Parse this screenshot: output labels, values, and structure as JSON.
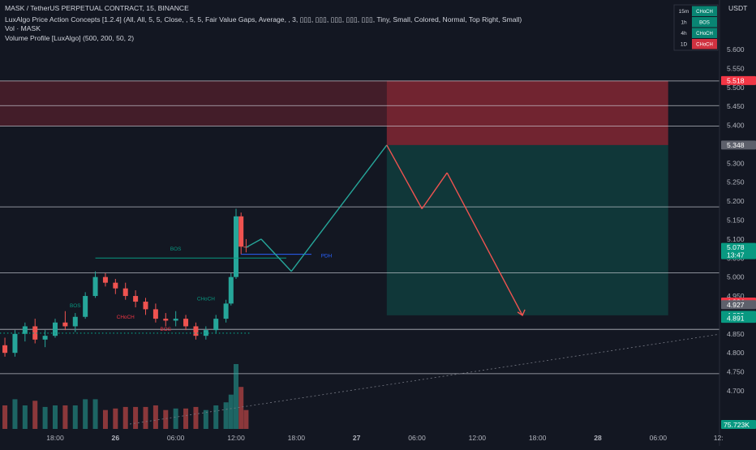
{
  "header": {
    "symbol_line": "MASK / TetherUS PERPETUAL CONTRACT, 15, BINANCE",
    "indicator_line": "LuxAlgo Price Action Concepts [1.2.4] (All, All, 5, 5, Close, , 5, 5, Fair Value Gaps, Average, , 3, ▯▯▯, ▯▯▯, ▯▯▯, ▯▯▯, ▯▯▯, Tiny, Small, Colored, Normal, Top Right, Small)",
    "vol_line": "Vol · MASK",
    "vp_line": "Volume Profile [LuxAlgo] (500, 200, 50, 2)"
  },
  "currency": "USDT",
  "mtf_table": [
    {
      "tf": "15m",
      "signal": "CHoCH",
      "color": "#089981"
    },
    {
      "tf": "1h",
      "signal": "BOS",
      "color": "#089981"
    },
    {
      "tf": "4h",
      "signal": "CHoCH",
      "color": "#089981"
    },
    {
      "tf": "1D",
      "signal": "CHoCH",
      "color": "#f23645"
    }
  ],
  "chart_data": {
    "type": "candlestick",
    "symbol": "MASK / TetherUS PERPETUAL CONTRACT",
    "interval": "15",
    "exchange": "BINANCE",
    "y_range": [
      4.655,
      5.66
    ],
    "y_ticks": [
      "5.600",
      "5.550",
      "5.500",
      "5.450",
      "5.400",
      "5.350",
      "5.300",
      "5.250",
      "5.200",
      "5.150",
      "5.100",
      "5.050",
      "5.000",
      "4.950",
      "4.900",
      "4.850",
      "4.800",
      "4.750",
      "4.700"
    ],
    "x_ticks": [
      {
        "t": "2025-06-25T18:00",
        "label": "18:00",
        "bold": false
      },
      {
        "t": "2025-06-26T00:00",
        "label": "26",
        "bold": true
      },
      {
        "t": "2025-06-26T06:00",
        "label": "06:00",
        "bold": false
      },
      {
        "t": "2025-06-26T12:00",
        "label": "12:00",
        "bold": false
      },
      {
        "t": "2025-06-26T18:00",
        "label": "18:00",
        "bold": false
      },
      {
        "t": "2025-06-27T00:00",
        "label": "27",
        "bold": true
      },
      {
        "t": "2025-06-27T06:00",
        "label": "06:00",
        "bold": false
      },
      {
        "t": "2025-06-27T12:00",
        "label": "12:00",
        "bold": false
      },
      {
        "t": "2025-06-27T18:00",
        "label": "18:00",
        "bold": false
      },
      {
        "t": "2025-06-28T00:00",
        "label": "28",
        "bold": true
      },
      {
        "t": "2025-06-28T06:00",
        "label": "06:00",
        "bold": false
      },
      {
        "t": "2025-06-28T12:00",
        "label": "12:",
        "bold": false
      }
    ],
    "price_series_ohlc": [
      [
        "2025-06-25T12:00",
        4.79,
        4.835,
        4.77,
        4.82
      ],
      [
        "2025-06-25T13:00",
        4.82,
        4.84,
        4.79,
        4.8
      ],
      [
        "2025-06-25T14:00",
        4.8,
        4.86,
        4.79,
        4.85
      ],
      [
        "2025-06-25T15:00",
        4.85,
        4.88,
        4.83,
        4.87
      ],
      [
        "2025-06-25T16:00",
        4.87,
        4.89,
        4.825,
        4.835
      ],
      [
        "2025-06-25T17:00",
        4.835,
        4.86,
        4.815,
        4.845
      ],
      [
        "2025-06-25T18:00",
        4.845,
        4.89,
        4.84,
        4.88
      ],
      [
        "2025-06-25T19:00",
        4.88,
        4.91,
        4.86,
        4.87
      ],
      [
        "2025-06-25T20:00",
        4.87,
        4.905,
        4.855,
        4.895
      ],
      [
        "2025-06-25T21:00",
        4.895,
        4.96,
        4.89,
        4.95
      ],
      [
        "2025-06-25T22:00",
        4.95,
        5.015,
        4.945,
        5.0
      ],
      [
        "2025-06-25T23:00",
        5.0,
        5.01,
        4.975,
        4.985
      ],
      [
        "2025-06-26T00:00",
        4.985,
        4.995,
        4.955,
        4.97
      ],
      [
        "2025-06-26T01:00",
        4.97,
        4.985,
        4.94,
        4.95
      ],
      [
        "2025-06-26T02:00",
        4.95,
        4.965,
        4.92,
        4.935
      ],
      [
        "2025-06-26T03:00",
        4.935,
        4.945,
        4.9,
        4.915
      ],
      [
        "2025-06-26T04:00",
        4.915,
        4.93,
        4.88,
        4.89
      ],
      [
        "2025-06-26T05:00",
        4.89,
        4.905,
        4.87,
        4.885
      ],
      [
        "2025-06-26T06:00",
        4.885,
        4.91,
        4.87,
        4.89
      ],
      [
        "2025-06-26T07:00",
        4.89,
        4.9,
        4.86,
        4.87
      ],
      [
        "2025-06-26T08:00",
        4.87,
        4.88,
        4.835,
        4.845
      ],
      [
        "2025-06-26T09:00",
        4.845,
        4.87,
        4.835,
        4.86
      ],
      [
        "2025-06-26T10:00",
        4.86,
        4.9,
        4.85,
        4.89
      ],
      [
        "2025-06-26T11:00",
        4.89,
        4.94,
        4.88,
        4.93
      ],
      [
        "2025-06-26T11:30",
        4.93,
        5.01,
        4.925,
        5.0
      ],
      [
        "2025-06-26T12:00",
        5.0,
        5.18,
        4.995,
        5.16
      ],
      [
        "2025-06-26T12:30",
        5.16,
        5.17,
        5.06,
        5.08
      ],
      [
        "2025-06-26T13:00",
        5.08,
        5.1,
        5.065,
        5.078
      ]
    ],
    "volume_label": "75.723K",
    "horizontal_levels": [
      5.517,
      5.452,
      5.398,
      5.185,
      5.011,
      4.862,
      4.745
    ],
    "labels": [
      {
        "text": "BOS",
        "t": "2025-06-26T06:00",
        "price": 5.07,
        "color": "#089981"
      },
      {
        "text": "PDH",
        "t": "2025-06-26T21:00",
        "price": 5.052,
        "color": "#2962ff"
      },
      {
        "text": "CHoCH",
        "t": "2025-06-26T09:00",
        "price": 4.938,
        "color": "#089981"
      },
      {
        "text": "CHoCH",
        "t": "2025-06-26T01:00",
        "price": 4.89,
        "color": "#f23645"
      },
      {
        "text": "BOS",
        "t": "2025-06-25T20:00",
        "price": 4.92,
        "color": "#089981"
      },
      {
        "text": "BOS",
        "t": "2025-06-26T05:00",
        "price": 4.858,
        "color": "#f23645"
      }
    ],
    "projection_path": [
      {
        "t": "2025-06-26T13:00",
        "price": 5.078
      },
      {
        "t": "2025-06-26T14:30",
        "price": 5.1
      },
      {
        "t": "2025-06-26T17:30",
        "price": 5.015
      },
      {
        "t": "2025-06-27T03:00",
        "price": 5.348
      },
      {
        "t": "2025-06-27T06:30",
        "price": 5.18
      },
      {
        "t": "2025-06-27T09:00",
        "price": 5.275
      },
      {
        "t": "2025-06-27T16:30",
        "price": 4.899
      }
    ],
    "position": {
      "start": "2025-06-27T03:00",
      "end": "2025-06-28T07:00",
      "stop": 5.518,
      "entry": 5.348,
      "target": 4.899
    },
    "price_tags": [
      {
        "text": "5.518",
        "price": 5.518,
        "bg": "#f23645",
        "fg": "#ffffff"
      },
      {
        "text": "5.348",
        "price": 5.348,
        "bg": "#5d606b",
        "fg": "#ffffff"
      },
      {
        "text": "5.078",
        "price": 5.078,
        "bg": "#089981",
        "fg": "#ffffff",
        "sub": "13:47"
      },
      {
        "text": "4.934",
        "price": 4.934,
        "bg": "#f23645",
        "fg": "#ffffff"
      },
      {
        "text": "4.927",
        "price": 4.927,
        "bg": "#5d606b",
        "fg": "#ffffff"
      },
      {
        "text": "4.899",
        "price": 4.899,
        "bg": "#089981",
        "fg": "#ffffff"
      },
      {
        "text": "4.891",
        "price": 4.891,
        "bg": "#089981",
        "fg": "#ffffff"
      }
    ],
    "colors": {
      "background": "#131722",
      "up": "#26a69a",
      "down": "#ef5350",
      "text": "#b2b5be",
      "level": "#d1d4dc",
      "stop_zone": "#f23645",
      "target_zone": "#089981",
      "projection_up": "#26a69a",
      "projection_down": "#ef5350"
    }
  }
}
